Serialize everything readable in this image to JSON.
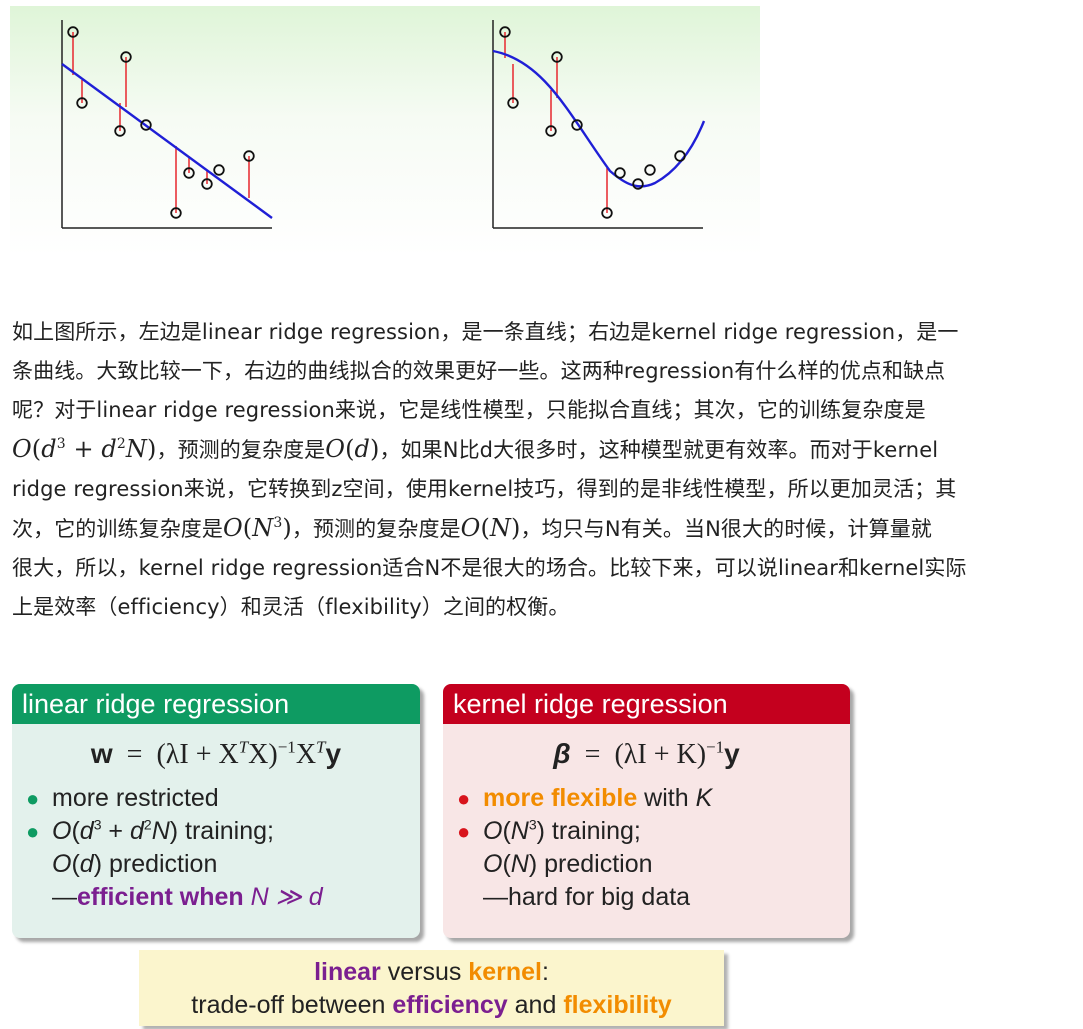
{
  "paragraph": {
    "l1": "如上图所示，左边是linear ridge regression，是一条直线；右边是kernel ridge regression，是一",
    "l2": "条曲线。大致比较一下，右边的曲线拟合的效果更好一些。这两种regression有什么样的优点和缺点",
    "l3": "呢？对于linear ridge regression来说，它是线性模型，只能拟合直线；其次，它的训练复杂度是",
    "l4a": "，预测的复杂度是",
    "l4b": "，如果N比d大很多时，这种模型就更有效率。而对于kernel",
    "l5": "ridge regression来说，它转换到z空间，使用kernel技巧，得到的是非线性模型，所以更加灵活；其",
    "l6a": "次，它的训练复杂度是",
    "l6b": "，预测的复杂度是",
    "l6c": "，均只与N有关。当N很大的时候，计算量就",
    "l7": "很大，所以，kernel ridge regression适合N不是很大的场合。比较下来，可以说linear和kernel实际",
    "l8": "上是效率（efficiency）和灵活（flexibility）之间的权衡。"
  },
  "linear_panel": {
    "title": "linear ridge regression",
    "b1": "more restricted",
    "b2_tail": " training;",
    "b3_tail": " prediction",
    "b4_prefix": "—",
    "b4_bold": "efficient when"
  },
  "kernel_panel": {
    "title": "kernel ridge regression",
    "b1_bold": "more flexible",
    "b1_tail": " with ",
    "b2_tail": " training;",
    "b3_tail": " prediction",
    "b4": "—hard for big data"
  },
  "banner": {
    "w1": "linear",
    "w2": " versus ",
    "w3": "kernel",
    "w4": ":",
    "w5": "trade-off between ",
    "w6": "efficiency",
    "w7": " and ",
    "w8": "flexibility"
  },
  "colors": {
    "linear_header": "#0e9b62",
    "kernel_header": "#c4001e",
    "orange_text": "#f28c00",
    "purple_text": "#7b1f90",
    "fit_line": "#1f1fd6",
    "residual": "#e8343a"
  }
}
